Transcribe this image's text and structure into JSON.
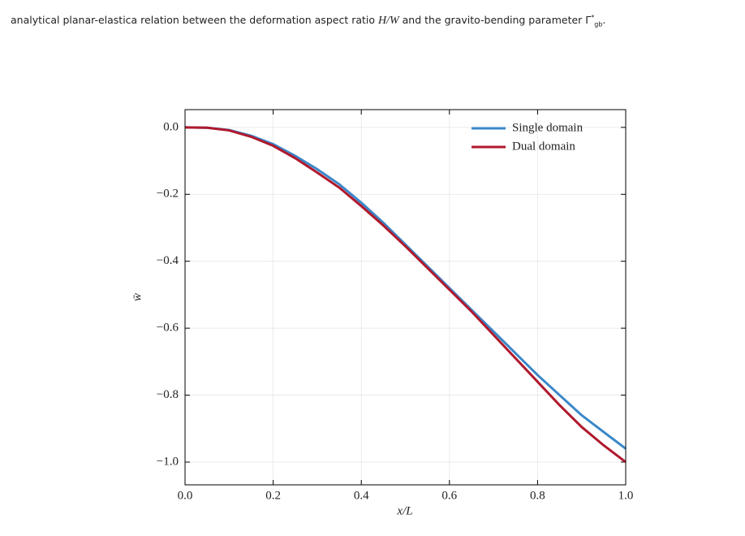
{
  "caption": {
    "before": "analytical planar-elastica relation between the deformation aspect ratio ",
    "ratio": "H/W",
    "middle": " and the gravito-bending parameter ",
    "symbol": "Γ",
    "sub": "gb",
    "sup": "*",
    "end": "."
  },
  "chart_data": {
    "type": "line",
    "xlabel": "x/L",
    "ylabel": "w̄",
    "x": [
      0,
      0.05,
      0.1,
      0.15,
      0.2,
      0.25,
      0.3,
      0.35,
      0.4,
      0.45,
      0.5,
      0.55,
      0.6,
      0.65,
      0.7,
      0.75,
      0.8,
      0.85,
      0.9,
      0.95,
      1.0
    ],
    "series": [
      {
        "name": "Single domain",
        "color": "#3a87c8",
        "values": [
          0,
          -0.001,
          -0.008,
          -0.025,
          -0.05,
          -0.085,
          -0.125,
          -0.17,
          -0.225,
          -0.285,
          -0.35,
          -0.415,
          -0.48,
          -0.545,
          -0.61,
          -0.675,
          -0.74,
          -0.8,
          -0.86,
          -0.91,
          -0.96
        ]
      },
      {
        "name": "Dual domain",
        "color": "#b0192d",
        "values": [
          0,
          -0.001,
          -0.009,
          -0.028,
          -0.055,
          -0.092,
          -0.135,
          -0.18,
          -0.235,
          -0.293,
          -0.355,
          -0.42,
          -0.485,
          -0.55,
          -0.62,
          -0.69,
          -0.76,
          -0.83,
          -0.895,
          -0.95,
          -1.0
        ]
      }
    ],
    "xlim": [
      0,
      1
    ],
    "ylim": [
      -1.068,
      0.053
    ],
    "xticks": [
      {
        "value": 0,
        "label": "0.0"
      },
      {
        "value": 0.2,
        "label": "0.2"
      },
      {
        "value": 0.4,
        "label": "0.4"
      },
      {
        "value": 0.6,
        "label": "0.6"
      },
      {
        "value": 0.8,
        "label": "0.8"
      },
      {
        "value": 1.0,
        "label": "1.0"
      }
    ],
    "yticks": [
      {
        "value": 0,
        "label": "0.0"
      },
      {
        "value": -0.2,
        "label": "−0.2"
      },
      {
        "value": -0.4,
        "label": "−0.4"
      },
      {
        "value": -0.6,
        "label": "−0.6"
      },
      {
        "value": -0.8,
        "label": "−0.8"
      },
      {
        "value": -1.0,
        "label": "−1.0"
      }
    ],
    "grid": true,
    "legend": "upper right"
  }
}
